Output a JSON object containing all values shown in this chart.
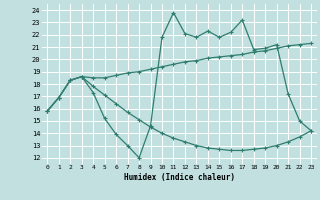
{
  "xlabel": "Humidex (Indice chaleur)",
  "bg_color": "#c2e0e0",
  "grid_color": "#ffffff",
  "line_color": "#2e7d6e",
  "xlim": [
    -0.5,
    23.5
  ],
  "ylim": [
    11.5,
    24.5
  ],
  "yticks": [
    12,
    13,
    14,
    15,
    16,
    17,
    18,
    19,
    20,
    21,
    22,
    23,
    24
  ],
  "xticks": [
    0,
    1,
    2,
    3,
    4,
    5,
    6,
    7,
    8,
    9,
    10,
    11,
    12,
    13,
    14,
    15,
    16,
    17,
    18,
    19,
    20,
    21,
    22,
    23
  ],
  "line1_x": [
    0,
    1,
    2,
    3,
    4,
    5,
    6,
    7,
    8,
    9,
    10,
    11,
    12,
    13,
    14,
    15,
    16,
    17,
    18,
    19,
    20,
    21,
    22,
    23
  ],
  "line1_y": [
    15.8,
    16.9,
    18.3,
    18.6,
    17.3,
    15.2,
    13.9,
    13.0,
    12.0,
    14.6,
    21.8,
    23.8,
    22.1,
    21.8,
    22.3,
    21.8,
    22.2,
    23.2,
    20.8,
    20.9,
    21.2,
    17.2,
    15.0,
    14.2
  ],
  "line2_x": [
    0,
    1,
    2,
    3,
    4,
    5,
    6,
    7,
    8,
    9,
    10,
    11,
    12,
    13,
    14,
    15,
    16,
    17,
    18,
    19,
    20,
    21,
    22,
    23
  ],
  "line2_y": [
    15.8,
    16.9,
    18.3,
    18.6,
    18.5,
    18.5,
    18.7,
    18.9,
    19.0,
    19.2,
    19.4,
    19.6,
    19.8,
    19.9,
    20.1,
    20.2,
    20.3,
    20.4,
    20.6,
    20.7,
    20.9,
    21.1,
    21.2,
    21.3
  ],
  "line3_x": [
    0,
    1,
    2,
    3,
    4,
    5,
    6,
    7,
    8,
    9,
    10,
    11,
    12,
    13,
    14,
    15,
    16,
    17,
    18,
    19,
    20,
    21,
    22,
    23
  ],
  "line3_y": [
    15.8,
    16.9,
    18.3,
    18.6,
    17.8,
    17.1,
    16.4,
    15.7,
    15.1,
    14.5,
    14.0,
    13.6,
    13.3,
    13.0,
    12.8,
    12.7,
    12.6,
    12.6,
    12.7,
    12.8,
    13.0,
    13.3,
    13.7,
    14.2
  ]
}
